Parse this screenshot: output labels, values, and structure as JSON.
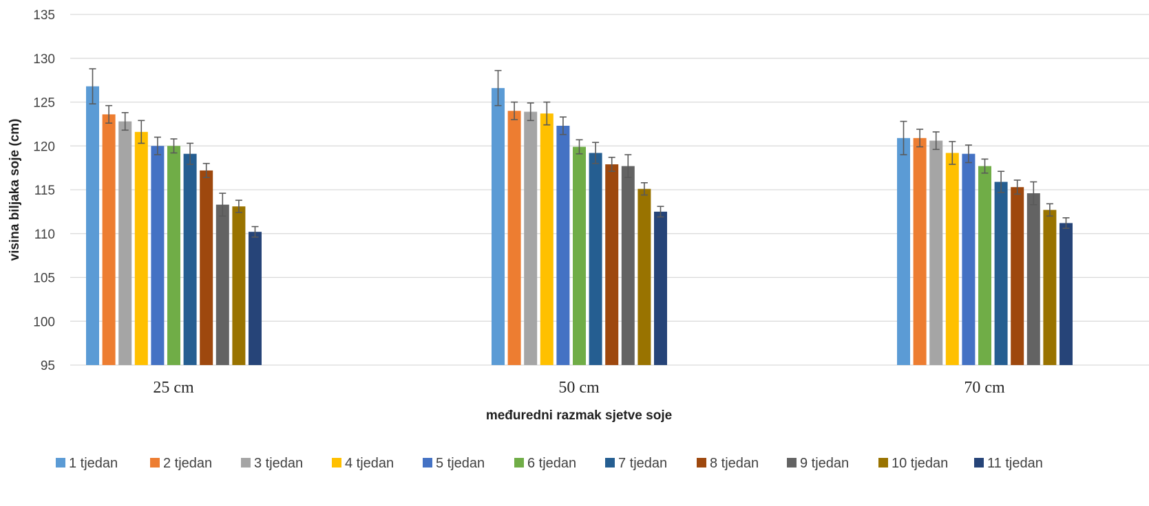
{
  "chart_data": {
    "type": "bar",
    "title": "",
    "xlabel": "međuredni razmak sjetve soje",
    "ylabel": "visina biljaka soje (cm)",
    "ylim": [
      95,
      135
    ],
    "yticks": [
      "95",
      "100",
      "105",
      "110",
      "115",
      "120",
      "125",
      "130",
      "135"
    ],
    "grid": true,
    "legend_position": "bottom",
    "error_bars": true,
    "categories": [
      "25 cm",
      "50 cm",
      "70 cm"
    ],
    "series": [
      {
        "name": "1 tjedan",
        "color": "#5B9BD5",
        "values": [
          126.8,
          126.6,
          120.9
        ],
        "errors": [
          2.0,
          2.0,
          1.9
        ]
      },
      {
        "name": "2 tjedan",
        "color": "#ED7D31",
        "values": [
          123.6,
          124.0,
          120.9
        ],
        "errors": [
          1.0,
          1.0,
          1.0
        ]
      },
      {
        "name": "3 tjedan",
        "color": "#A5A5A5",
        "values": [
          122.8,
          123.9,
          120.6
        ],
        "errors": [
          1.0,
          1.0,
          1.0
        ]
      },
      {
        "name": "4 tjedan",
        "color": "#FFC000",
        "values": [
          121.6,
          123.7,
          119.2
        ],
        "errors": [
          1.3,
          1.3,
          1.3
        ]
      },
      {
        "name": "5 tjedan",
        "color": "#4472C4",
        "values": [
          120.0,
          122.3,
          119.1
        ],
        "errors": [
          1.0,
          1.0,
          1.0
        ]
      },
      {
        "name": "6 tjedan",
        "color": "#70AD47",
        "values": [
          120.0,
          119.9,
          117.7
        ],
        "errors": [
          0.8,
          0.8,
          0.8
        ]
      },
      {
        "name": "7 tjedan",
        "color": "#255E91",
        "values": [
          119.1,
          119.2,
          115.9
        ],
        "errors": [
          1.2,
          1.2,
          1.2
        ]
      },
      {
        "name": "8 tjedan",
        "color": "#9E480E",
        "values": [
          117.2,
          117.9,
          115.3
        ],
        "errors": [
          0.8,
          0.8,
          0.8
        ]
      },
      {
        "name": "9 tjedan",
        "color": "#636363",
        "values": [
          113.3,
          117.7,
          114.6
        ],
        "errors": [
          1.3,
          1.3,
          1.3
        ]
      },
      {
        "name": "10 tjedan",
        "color": "#997300",
        "values": [
          113.1,
          115.1,
          112.7
        ],
        "errors": [
          0.7,
          0.7,
          0.7
        ]
      },
      {
        "name": "11 tjedan",
        "color": "#264478",
        "values": [
          110.2,
          112.5,
          111.2
        ],
        "errors": [
          0.6,
          0.6,
          0.6
        ]
      }
    ]
  }
}
